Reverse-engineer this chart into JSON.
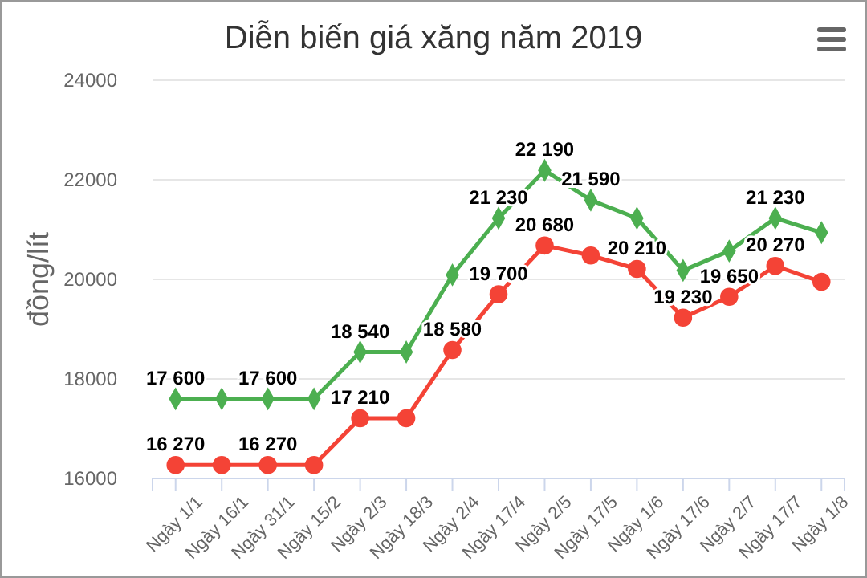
{
  "chart_data": {
    "type": "line",
    "title": "Diễn biến giá xăng năm 2019",
    "ylabel": "đồng/lít",
    "categories": [
      "Ngày 1/1",
      "Ngày 16/1",
      "Ngày 31/1",
      "Ngày 15/2",
      "Ngày 2/3",
      "Ngày 18/3",
      "Ngày 2/4",
      "Ngày 17/4",
      "Ngày 2/5",
      "Ngày 17/5",
      "Ngày 1/6",
      "Ngày 17/6",
      "Ngày 2/7",
      "Ngày 17/7",
      "Ngày 1/8"
    ],
    "series": [
      {
        "color": "#4caf50",
        "marker": "diamond",
        "values": [
          17600,
          17600,
          17600,
          17600,
          18540,
          18540,
          20090,
          21230,
          22190,
          21590,
          21230,
          20180,
          20570,
          21230,
          20940
        ],
        "value_labels": [
          "17 600",
          null,
          "17 600",
          null,
          "18 540",
          null,
          null,
          "21 230",
          "22 190",
          "21 590",
          null,
          null,
          null,
          "21 230",
          null
        ]
      },
      {
        "color": "#f44336",
        "marker": "circle",
        "values": [
          16270,
          16270,
          16270,
          16270,
          17210,
          17210,
          18580,
          19700,
          20680,
          20480,
          20210,
          19230,
          19650,
          20270,
          19950
        ],
        "value_labels": [
          "16 270",
          null,
          "16 270",
          null,
          "17 210",
          null,
          "18 580",
          "19 700",
          "20 680",
          null,
          "20 210",
          "19 230",
          "19 650",
          "20 270",
          null
        ]
      }
    ],
    "ylim": [
      16000,
      24000
    ],
    "yticks": [
      16000,
      18000,
      20000,
      22000,
      24000
    ],
    "grid": "y"
  }
}
